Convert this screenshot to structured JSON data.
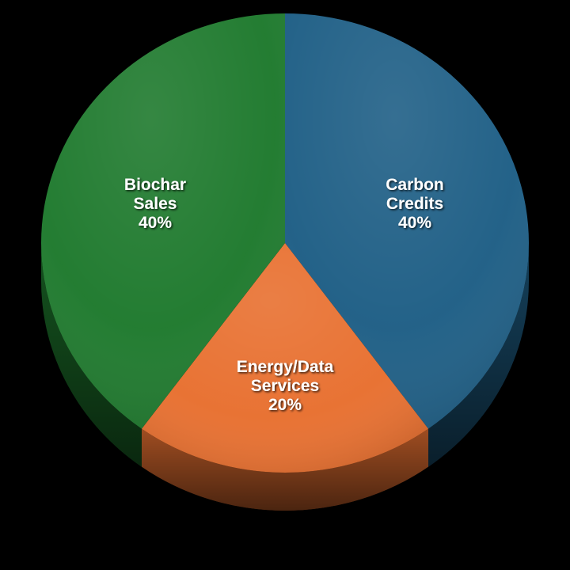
{
  "chart_data": {
    "type": "pie",
    "slices": [
      {
        "label_lines": [
          "Carbon",
          "Credits"
        ],
        "value_label": "40%",
        "value": 40,
        "color": "#1f5f86"
      },
      {
        "label_lines": [
          "Energy/Data",
          "Services"
        ],
        "value_label": "20%",
        "value": 20,
        "color": "#e87030"
      },
      {
        "label_lines": [
          "Biochar",
          "Sales"
        ],
        "value_label": "40%",
        "value": 40,
        "color": "#1f7a2e"
      }
    ]
  }
}
